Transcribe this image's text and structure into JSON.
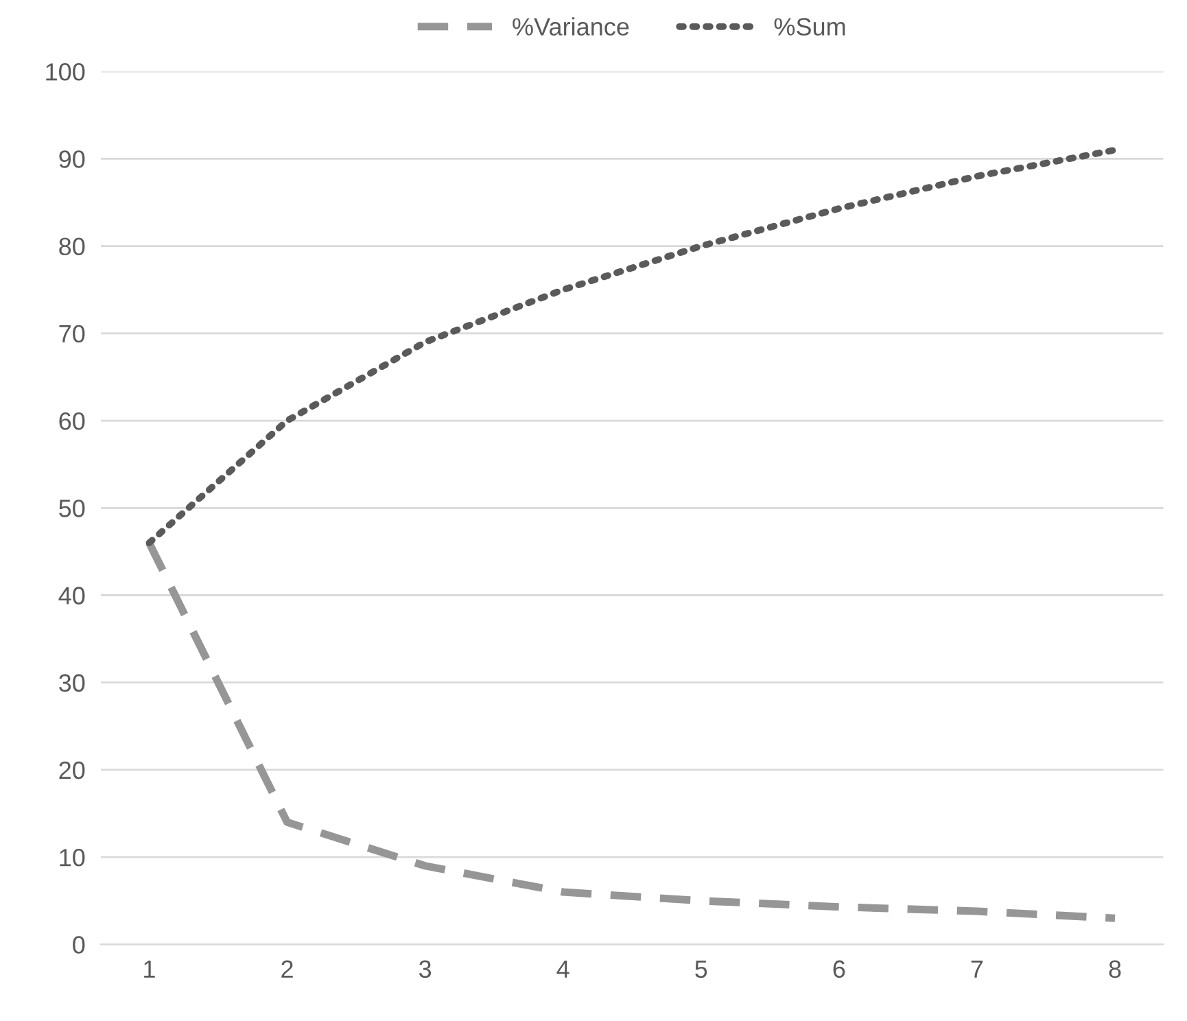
{
  "chart_data": {
    "type": "line",
    "categories": [
      "1",
      "2",
      "3",
      "4",
      "5",
      "6",
      "7",
      "8"
    ],
    "series": [
      {
        "name": "%Variance",
        "color": "#969696",
        "line_style": "dashed",
        "values": [
          46,
          14,
          9,
          6,
          5,
          4.3,
          3.8,
          3
        ]
      },
      {
        "name": "%Sum",
        "color": "#5a5a5a",
        "line_style": "dotted",
        "values": [
          46,
          60,
          69,
          75,
          80,
          84.3,
          88,
          91
        ]
      }
    ],
    "ylim": [
      0,
      100
    ],
    "yticks": [
      0,
      10,
      20,
      30,
      40,
      50,
      60,
      70,
      80,
      90,
      100
    ],
    "grid": "y",
    "legend": "top",
    "marker": "none"
  }
}
